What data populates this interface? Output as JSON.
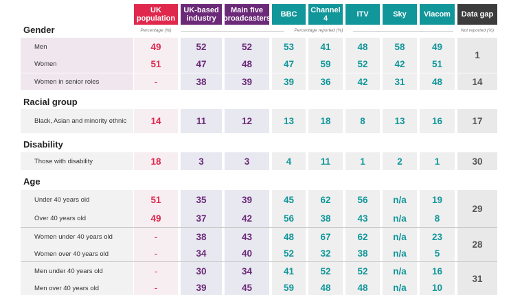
{
  "headers": {
    "uk_population": "UK population",
    "uk_industry": "UK-based industry",
    "main_five": "Main five broadcasters",
    "bbc": "BBC",
    "channel4": "Channel 4",
    "itv": "ITV",
    "sky": "Sky",
    "viacom": "Viacom",
    "data_gap": "Data gap"
  },
  "subheaders": {
    "percentage": "Percentage (%)",
    "percentage_reported": "Percentage reported (%)",
    "not_reported": "Not reported (%)"
  },
  "colors": {
    "uk_population": "#e0284d",
    "industry": "#6b2a78",
    "broadcasters": "#11969a",
    "data_gap": "#3c3c3c"
  },
  "sections": {
    "gender": "Gender",
    "racial": "Racial group",
    "disability": "Disability",
    "age": "Age"
  },
  "rows": [
    {
      "label": "Men",
      "values": [
        "49",
        "52",
        "52",
        "53",
        "41",
        "48",
        "58",
        "49"
      ]
    },
    {
      "label": "Women",
      "values": [
        "51",
        "47",
        "48",
        "47",
        "59",
        "52",
        "42",
        "51"
      ]
    },
    {
      "label": "Women in senior roles",
      "values": [
        "-",
        "38",
        "39",
        "39",
        "36",
        "42",
        "31",
        "48"
      ]
    },
    {
      "label": "Black, Asian and minority ethnic",
      "values": [
        "14",
        "11",
        "12",
        "13",
        "18",
        "8",
        "13",
        "16"
      ]
    },
    {
      "label": "Those with disability",
      "values": [
        "18",
        "3",
        "3",
        "4",
        "11",
        "1",
        "2",
        "1"
      ]
    },
    {
      "label": "Under 40 years old",
      "values": [
        "51",
        "35",
        "39",
        "45",
        "62",
        "56",
        "n/a",
        "19"
      ]
    },
    {
      "label": "Over 40 years old",
      "values": [
        "49",
        "37",
        "42",
        "56",
        "38",
        "43",
        "n/a",
        "8"
      ]
    },
    {
      "label": "Women under 40 years old",
      "values": [
        "-",
        "38",
        "43",
        "48",
        "67",
        "62",
        "n/a",
        "23"
      ]
    },
    {
      "label": "Women over 40 years old",
      "values": [
        "-",
        "34",
        "40",
        "52",
        "32",
        "38",
        "n/a",
        "5"
      ]
    },
    {
      "label": "Men under 40 years old",
      "values": [
        "-",
        "30",
        "34",
        "41",
        "52",
        "52",
        "n/a",
        "16"
      ]
    },
    {
      "label": "Men over 40 years old",
      "values": [
        "-",
        "39",
        "45",
        "59",
        "48",
        "48",
        "n/a",
        "10"
      ]
    }
  ],
  "data_gap": [
    "1",
    "14",
    "17",
    "30",
    "29",
    "28",
    "31"
  ]
}
